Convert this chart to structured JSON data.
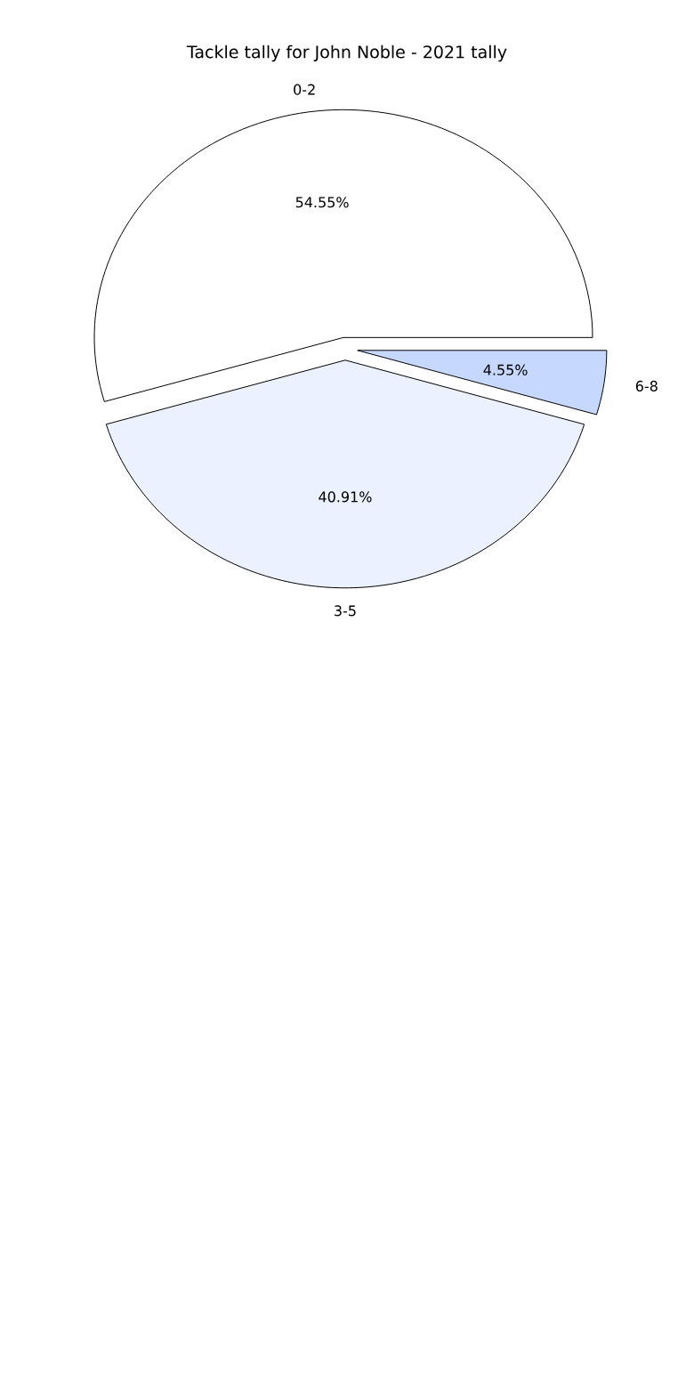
{
  "chart_data": {
    "type": "pie",
    "title": "Tackle tally for John Noble - 2021 tally",
    "categories": [
      "0-2",
      "3-5",
      "6-8"
    ],
    "values": [
      54.55,
      40.91,
      4.55
    ],
    "value_labels": [
      "54.55%",
      "40.91%",
      "4.55%"
    ],
    "colors": [
      "#ffffff",
      "#ebf1fe",
      "#c6d8fe"
    ]
  }
}
